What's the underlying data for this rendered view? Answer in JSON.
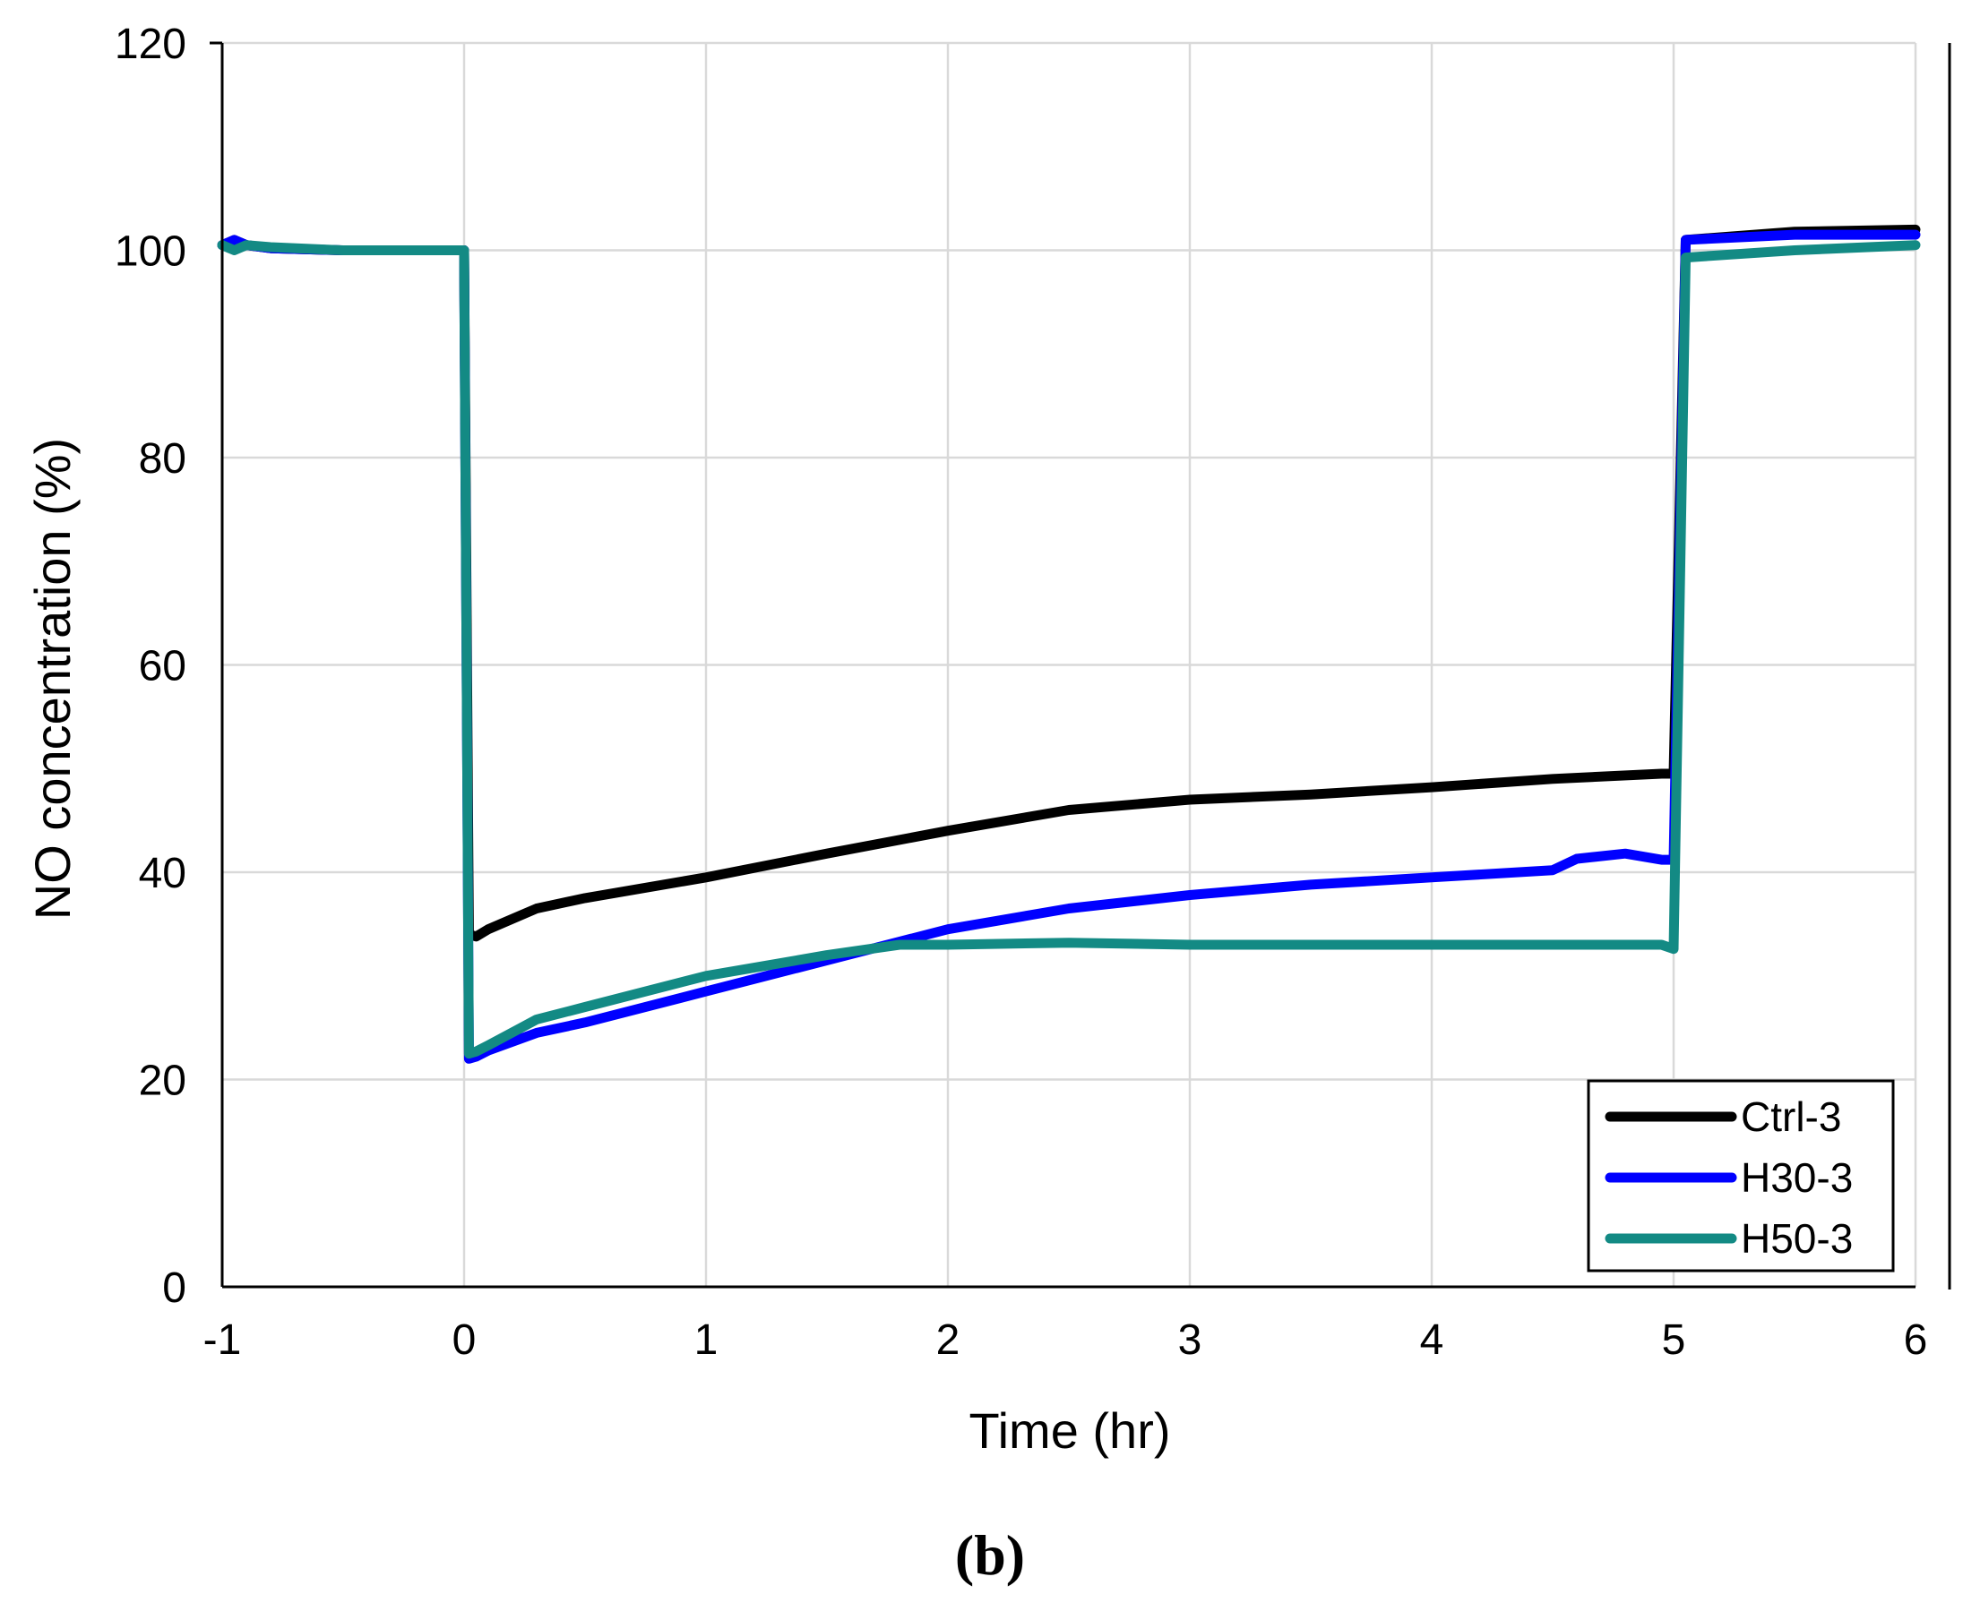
{
  "chart_data": {
    "type": "line",
    "title": "",
    "xlabel": "Time (hr)",
    "ylabel": "NO concentration (%)",
    "xlim": [
      -1,
      6
    ],
    "ylim": [
      0,
      120
    ],
    "xticks": [
      -1,
      0,
      1,
      2,
      3,
      4,
      5,
      6
    ],
    "yticks": [
      0,
      20,
      40,
      60,
      80,
      100,
      120
    ],
    "grid": true,
    "legend_position": "bottom-right",
    "panel_label": "(b)",
    "series": [
      {
        "name": "Ctrl-3",
        "color": "#000000",
        "x": [
          -1,
          -0.95,
          -0.9,
          -0.8,
          -0.5,
          -0.2,
          0,
          0.02,
          0.05,
          0.1,
          0.3,
          0.5,
          1,
          1.5,
          2,
          2.5,
          3,
          3.5,
          4,
          4.5,
          4.95,
          5.0,
          5.05,
          5.5,
          6
        ],
        "y": [
          100.5,
          101,
          100.5,
          100.2,
          100,
          100,
          100,
          34,
          33.8,
          34.5,
          36.5,
          37.5,
          39.5,
          41.8,
          44,
          46,
          47,
          47.5,
          48.2,
          49,
          49.5,
          49.5,
          101,
          101.8,
          102
        ]
      },
      {
        "name": "H30-3",
        "color": "#0000ff",
        "x": [
          -1,
          -0.95,
          -0.9,
          -0.8,
          -0.5,
          -0.2,
          0,
          0.02,
          0.05,
          0.1,
          0.3,
          0.5,
          1,
          1.5,
          2,
          2.5,
          3,
          3.5,
          4,
          4.5,
          4.6,
          4.8,
          4.95,
          5.0,
          5.05,
          5.5,
          6
        ],
        "y": [
          100.5,
          101,
          100.5,
          100.2,
          100,
          100,
          100,
          22,
          22.2,
          22.8,
          24.5,
          25.5,
          28.5,
          31.5,
          34.5,
          36.5,
          37.8,
          38.8,
          39.5,
          40.2,
          41.3,
          41.8,
          41.2,
          41.2,
          101,
          101.5,
          101.5
        ]
      },
      {
        "name": "H50-3",
        "color": "#138a84",
        "x": [
          -1,
          -0.95,
          -0.9,
          -0.8,
          -0.5,
          -0.2,
          0,
          0.02,
          0.05,
          0.1,
          0.3,
          0.5,
          1,
          1.5,
          1.8,
          2,
          2.5,
          3,
          3.5,
          4,
          4.5,
          4.95,
          5.0,
          5.05,
          5.5,
          6
        ],
        "y": [
          100.5,
          100,
          100.5,
          100.3,
          100,
          100,
          100,
          22.5,
          22.7,
          23.3,
          25.8,
          27,
          30,
          32,
          33,
          33,
          33.2,
          33,
          33,
          33,
          33,
          33,
          32.6,
          99.3,
          100,
          100.5
        ]
      }
    ]
  }
}
